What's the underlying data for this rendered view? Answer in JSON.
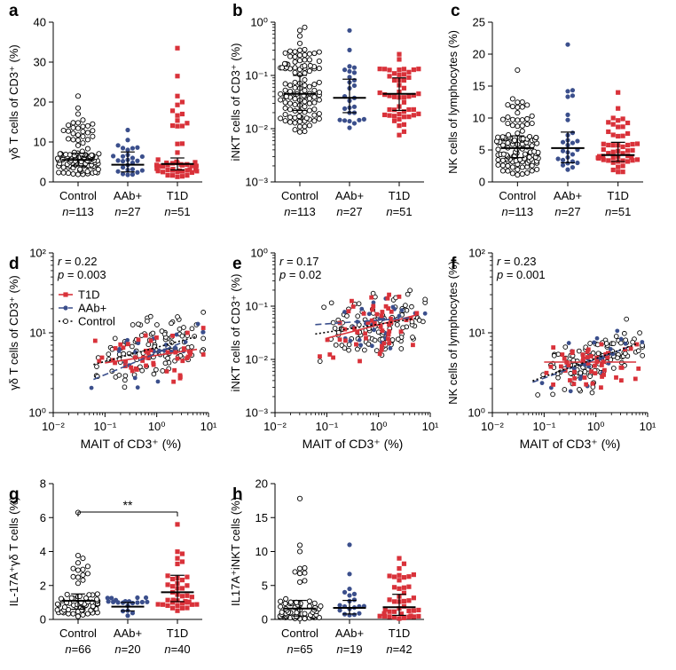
{
  "colors": {
    "control": "#000000",
    "aab": "#3b4f8c",
    "t1d": "#d9323a",
    "axis": "#000000"
  },
  "group_labels": [
    "Control",
    "AAb+",
    "T1D"
  ],
  "chart_data": [
    {
      "panel": "a",
      "type": "scatter",
      "ylabel": "γδ T cells of CD3⁺ (%)",
      "yscale": "linear",
      "ylim": [
        0,
        40
      ],
      "yticks": [
        0,
        10,
        20,
        30,
        40
      ],
      "ytick_labels": [
        "0",
        "10",
        "20",
        "30",
        "40"
      ],
      "categories": [
        "Control",
        "AAb+",
        "T1D"
      ],
      "n_labels": [
        "n=113",
        "n=27",
        "n=51"
      ],
      "series": [
        {
          "name": "Control",
          "n": 113,
          "median": 5.5,
          "q1": 4.0,
          "q3": 7.2,
          "min": 1.0,
          "max": 21.5,
          "outliers": [
            21.5,
            18.5,
            17.0,
            15.5,
            14.5
          ]
        },
        {
          "name": "AAb+",
          "n": 27,
          "median": 4.3,
          "q1": 2.5,
          "q3": 7.5,
          "min": 1.2,
          "max": 13.0,
          "outliers": [
            13.0,
            10.5
          ]
        },
        {
          "name": "T1D",
          "n": 51,
          "median": 4.5,
          "q1": 3.0,
          "q3": 6.0,
          "min": 0.8,
          "max": 33.5,
          "outliers": [
            33.5,
            26.5,
            21.5,
            20.0,
            17.0,
            14.0
          ]
        }
      ]
    },
    {
      "panel": "b",
      "type": "scatter",
      "ylabel": "iNKT cells of CD3⁺ (%)",
      "yscale": "log",
      "ylim": [
        0.001,
        1
      ],
      "yticks": [
        0.001,
        0.01,
        0.1,
        1
      ],
      "ytick_labels": [
        "10⁻³",
        "10⁻²",
        "10⁻¹",
        "10⁰"
      ],
      "categories": [
        "Control",
        "AAb+",
        "T1D"
      ],
      "n_labels": [
        "n=113",
        "n=27",
        "n=51"
      ],
      "series": [
        {
          "name": "Control",
          "n": 113,
          "median": 0.045,
          "q1": 0.022,
          "q3": 0.1,
          "min": 0.007,
          "max": 0.8,
          "outliers": [
            0.8,
            0.7,
            0.55,
            0.4
          ]
        },
        {
          "name": "AAb+",
          "n": 27,
          "median": 0.038,
          "q1": 0.02,
          "q3": 0.085,
          "min": 0.009,
          "max": 0.7,
          "outliers": [
            0.7,
            0.3
          ]
        },
        {
          "name": "T1D",
          "n": 51,
          "median": 0.045,
          "q1": 0.022,
          "q3": 0.09,
          "min": 0.005,
          "max": 0.25,
          "outliers": [
            0.25,
            0.2
          ]
        }
      ]
    },
    {
      "panel": "c",
      "type": "scatter",
      "ylabel": "NK cells of lymphocytes (%)",
      "yscale": "linear",
      "ylim": [
        0,
        25
      ],
      "yticks": [
        0,
        5,
        10,
        15,
        20,
        25
      ],
      "ytick_labels": [
        "0",
        "5",
        "10",
        "15",
        "20",
        "25"
      ],
      "categories": [
        "Control",
        "AAb+",
        "T1D"
      ],
      "n_labels": [
        "n=113",
        "n=27",
        "n=51"
      ],
      "series": [
        {
          "name": "Control",
          "n": 113,
          "median": 5.3,
          "q1": 3.8,
          "q3": 7.2,
          "min": 0.8,
          "max": 17.5,
          "outliers": [
            17.5,
            13.0,
            12.5
          ]
        },
        {
          "name": "AAb+",
          "n": 27,
          "median": 5.3,
          "q1": 3.0,
          "q3": 7.8,
          "min": 1.0,
          "max": 21.5,
          "outliers": [
            21.5,
            13.5,
            10.5
          ]
        },
        {
          "name": "T1D",
          "n": 51,
          "median": 4.2,
          "q1": 3.2,
          "q3": 6.2,
          "min": 1.0,
          "max": 14.0,
          "outliers": [
            14.0,
            11.5,
            10.0
          ]
        }
      ]
    },
    {
      "panel": "d",
      "type": "scatter",
      "xlabel": "MAIT of CD3⁺ (%)",
      "ylabel": "γδ T cells of CD3⁺ (%)",
      "xscale": "log",
      "yscale": "log",
      "xlim": [
        0.01,
        10
      ],
      "ylim": [
        1,
        100
      ],
      "xticks": [
        0.01,
        0.1,
        1,
        10
      ],
      "xtick_labels": [
        "10⁻²",
        "10⁻¹",
        "10⁰",
        "10¹"
      ],
      "yticks": [
        1,
        10,
        100
      ],
      "ytick_labels": [
        "10⁰",
        "10¹",
        "10²"
      ],
      "stats": {
        "r_label": "r = 0.22",
        "p_label": "p = 0.003"
      },
      "legend": [
        "T1D",
        "AAb+",
        "Control"
      ],
      "legend_position": "top-left",
      "series": [
        {
          "name": "T1D",
          "n": 51,
          "fit": {
            "x": [
              0.1,
              6
            ],
            "y": [
              4.2,
              6.2
            ]
          }
        },
        {
          "name": "AAb+",
          "n": 27,
          "fit": {
            "x": [
              0.06,
              3
            ],
            "y": [
              2.6,
              7.5
            ]
          }
        },
        {
          "name": "Control",
          "n": 113,
          "fit": {
            "x": [
              0.06,
              6
            ],
            "y": [
              4.0,
              9.0
            ]
          }
        }
      ]
    },
    {
      "panel": "e",
      "type": "scatter",
      "xlabel": "MAIT of CD3⁺ (%)",
      "ylabel": "iNKT cells of CD3⁺ (%)",
      "xscale": "log",
      "yscale": "log",
      "xlim": [
        0.01,
        10
      ],
      "ylim": [
        0.001,
        1
      ],
      "xticks": [
        0.01,
        0.1,
        1,
        10
      ],
      "xtick_labels": [
        "10⁻²",
        "10⁻¹",
        "10⁰",
        "10¹"
      ],
      "yticks": [
        0.001,
        0.01,
        0.1,
        1
      ],
      "ytick_labels": [
        "10⁻³",
        "10⁻²",
        "10⁻¹",
        "10⁰"
      ],
      "stats": {
        "r_label": "r = 0.17",
        "p_label": "p = 0.02"
      },
      "series": [
        {
          "name": "T1D",
          "n": 51,
          "fit": {
            "x": [
              0.1,
              6
            ],
            "y": [
              0.025,
              0.07
            ]
          }
        },
        {
          "name": "AAb+",
          "n": 27,
          "fit": {
            "x": [
              0.06,
              4
            ],
            "y": [
              0.045,
              0.06
            ]
          }
        },
        {
          "name": "Control",
          "n": 113,
          "fit": {
            "x": [
              0.06,
              6
            ],
            "y": [
              0.03,
              0.06
            ]
          }
        }
      ]
    },
    {
      "panel": "f",
      "type": "scatter",
      "xlabel": "MAIT of CD3⁺ (%)",
      "ylabel": "NK cells of lymphocytes (%)",
      "xscale": "log",
      "yscale": "log",
      "xlim": [
        0.01,
        10
      ],
      "ylim": [
        1,
        100
      ],
      "xticks": [
        0.01,
        0.1,
        1,
        10
      ],
      "xtick_labels": [
        "10⁻²",
        "10⁻¹",
        "10⁰",
        "10¹"
      ],
      "yticks": [
        1,
        10,
        100
      ],
      "ytick_labels": [
        "10⁰",
        "10¹",
        "10²"
      ],
      "stats": {
        "r_label": "r = 0.23",
        "p_label": "p = 0.001"
      },
      "series": [
        {
          "name": "T1D",
          "n": 51,
          "fit": {
            "x": [
              0.1,
              6
            ],
            "y": [
              4.3,
              4.3
            ]
          }
        },
        {
          "name": "AAb+",
          "n": 27,
          "fit": {
            "x": [
              0.06,
              4
            ],
            "y": [
              2.4,
              6.5
            ]
          }
        },
        {
          "name": "Control",
          "n": 113,
          "fit": {
            "x": [
              0.06,
              6
            ],
            "y": [
              2.5,
              7.2
            ]
          }
        }
      ]
    },
    {
      "panel": "g",
      "type": "scatter",
      "ylabel": "IL-17A⁺γδ T cells  (%)",
      "yscale": "linear",
      "ylim": [
        0,
        8
      ],
      "yticks": [
        0,
        2,
        4,
        6,
        8
      ],
      "ytick_labels": [
        "0",
        "2",
        "4",
        "6",
        "8"
      ],
      "categories": [
        "Control",
        "AAb+",
        "T1D"
      ],
      "n_labels": [
        "n=66",
        "n=20",
        "n=40"
      ],
      "significance": {
        "label": "**",
        "between": [
          "Control",
          "T1D"
        ]
      },
      "series": [
        {
          "name": "Control",
          "n": 66,
          "median": 1.1,
          "q1": 0.6,
          "q3": 1.5,
          "min": 0.1,
          "max": 6.3,
          "outliers": [
            6.3,
            3.6,
            3.0,
            2.9,
            2.7
          ]
        },
        {
          "name": "AAb+",
          "n": 20,
          "median": 0.75,
          "q1": 0.5,
          "q3": 1.0,
          "min": 0.2,
          "max": 1.6,
          "outliers": []
        },
        {
          "name": "T1D",
          "n": 40,
          "median": 1.6,
          "q1": 1.05,
          "q3": 2.6,
          "min": 0.2,
          "max": 5.6,
          "outliers": [
            5.6,
            3.6,
            3.4
          ]
        }
      ]
    },
    {
      "panel": "h",
      "type": "scatter",
      "ylabel": "IL17A⁺iNKT cells (%)",
      "yscale": "linear",
      "ylim": [
        0,
        20
      ],
      "yticks": [
        0,
        5,
        10,
        15,
        20
      ],
      "ytick_labels": [
        "0",
        "5",
        "10",
        "15",
        "20"
      ],
      "categories": [
        "Control",
        "AAb+",
        "T1D"
      ],
      "n_labels": [
        "n=65",
        "n=19",
        "n=42"
      ],
      "series": [
        {
          "name": "Control",
          "n": 65,
          "median": 1.6,
          "q1": 0.5,
          "q3": 2.8,
          "min": 0.0,
          "max": 17.8,
          "outliers": [
            17.8,
            10.0,
            7.5,
            7.0,
            5.5
          ]
        },
        {
          "name": "AAb+",
          "n": 19,
          "median": 1.7,
          "q1": 0.8,
          "q3": 2.8,
          "min": 0.0,
          "max": 11.0,
          "outliers": [
            11.0,
            4.5,
            4.0
          ]
        },
        {
          "name": "T1D",
          "n": 42,
          "median": 1.8,
          "q1": 0.6,
          "q3": 3.7,
          "min": 0.0,
          "max": 9.0,
          "outliers": [
            9.0,
            8.2,
            7.5,
            6.5
          ]
        }
      ]
    }
  ]
}
